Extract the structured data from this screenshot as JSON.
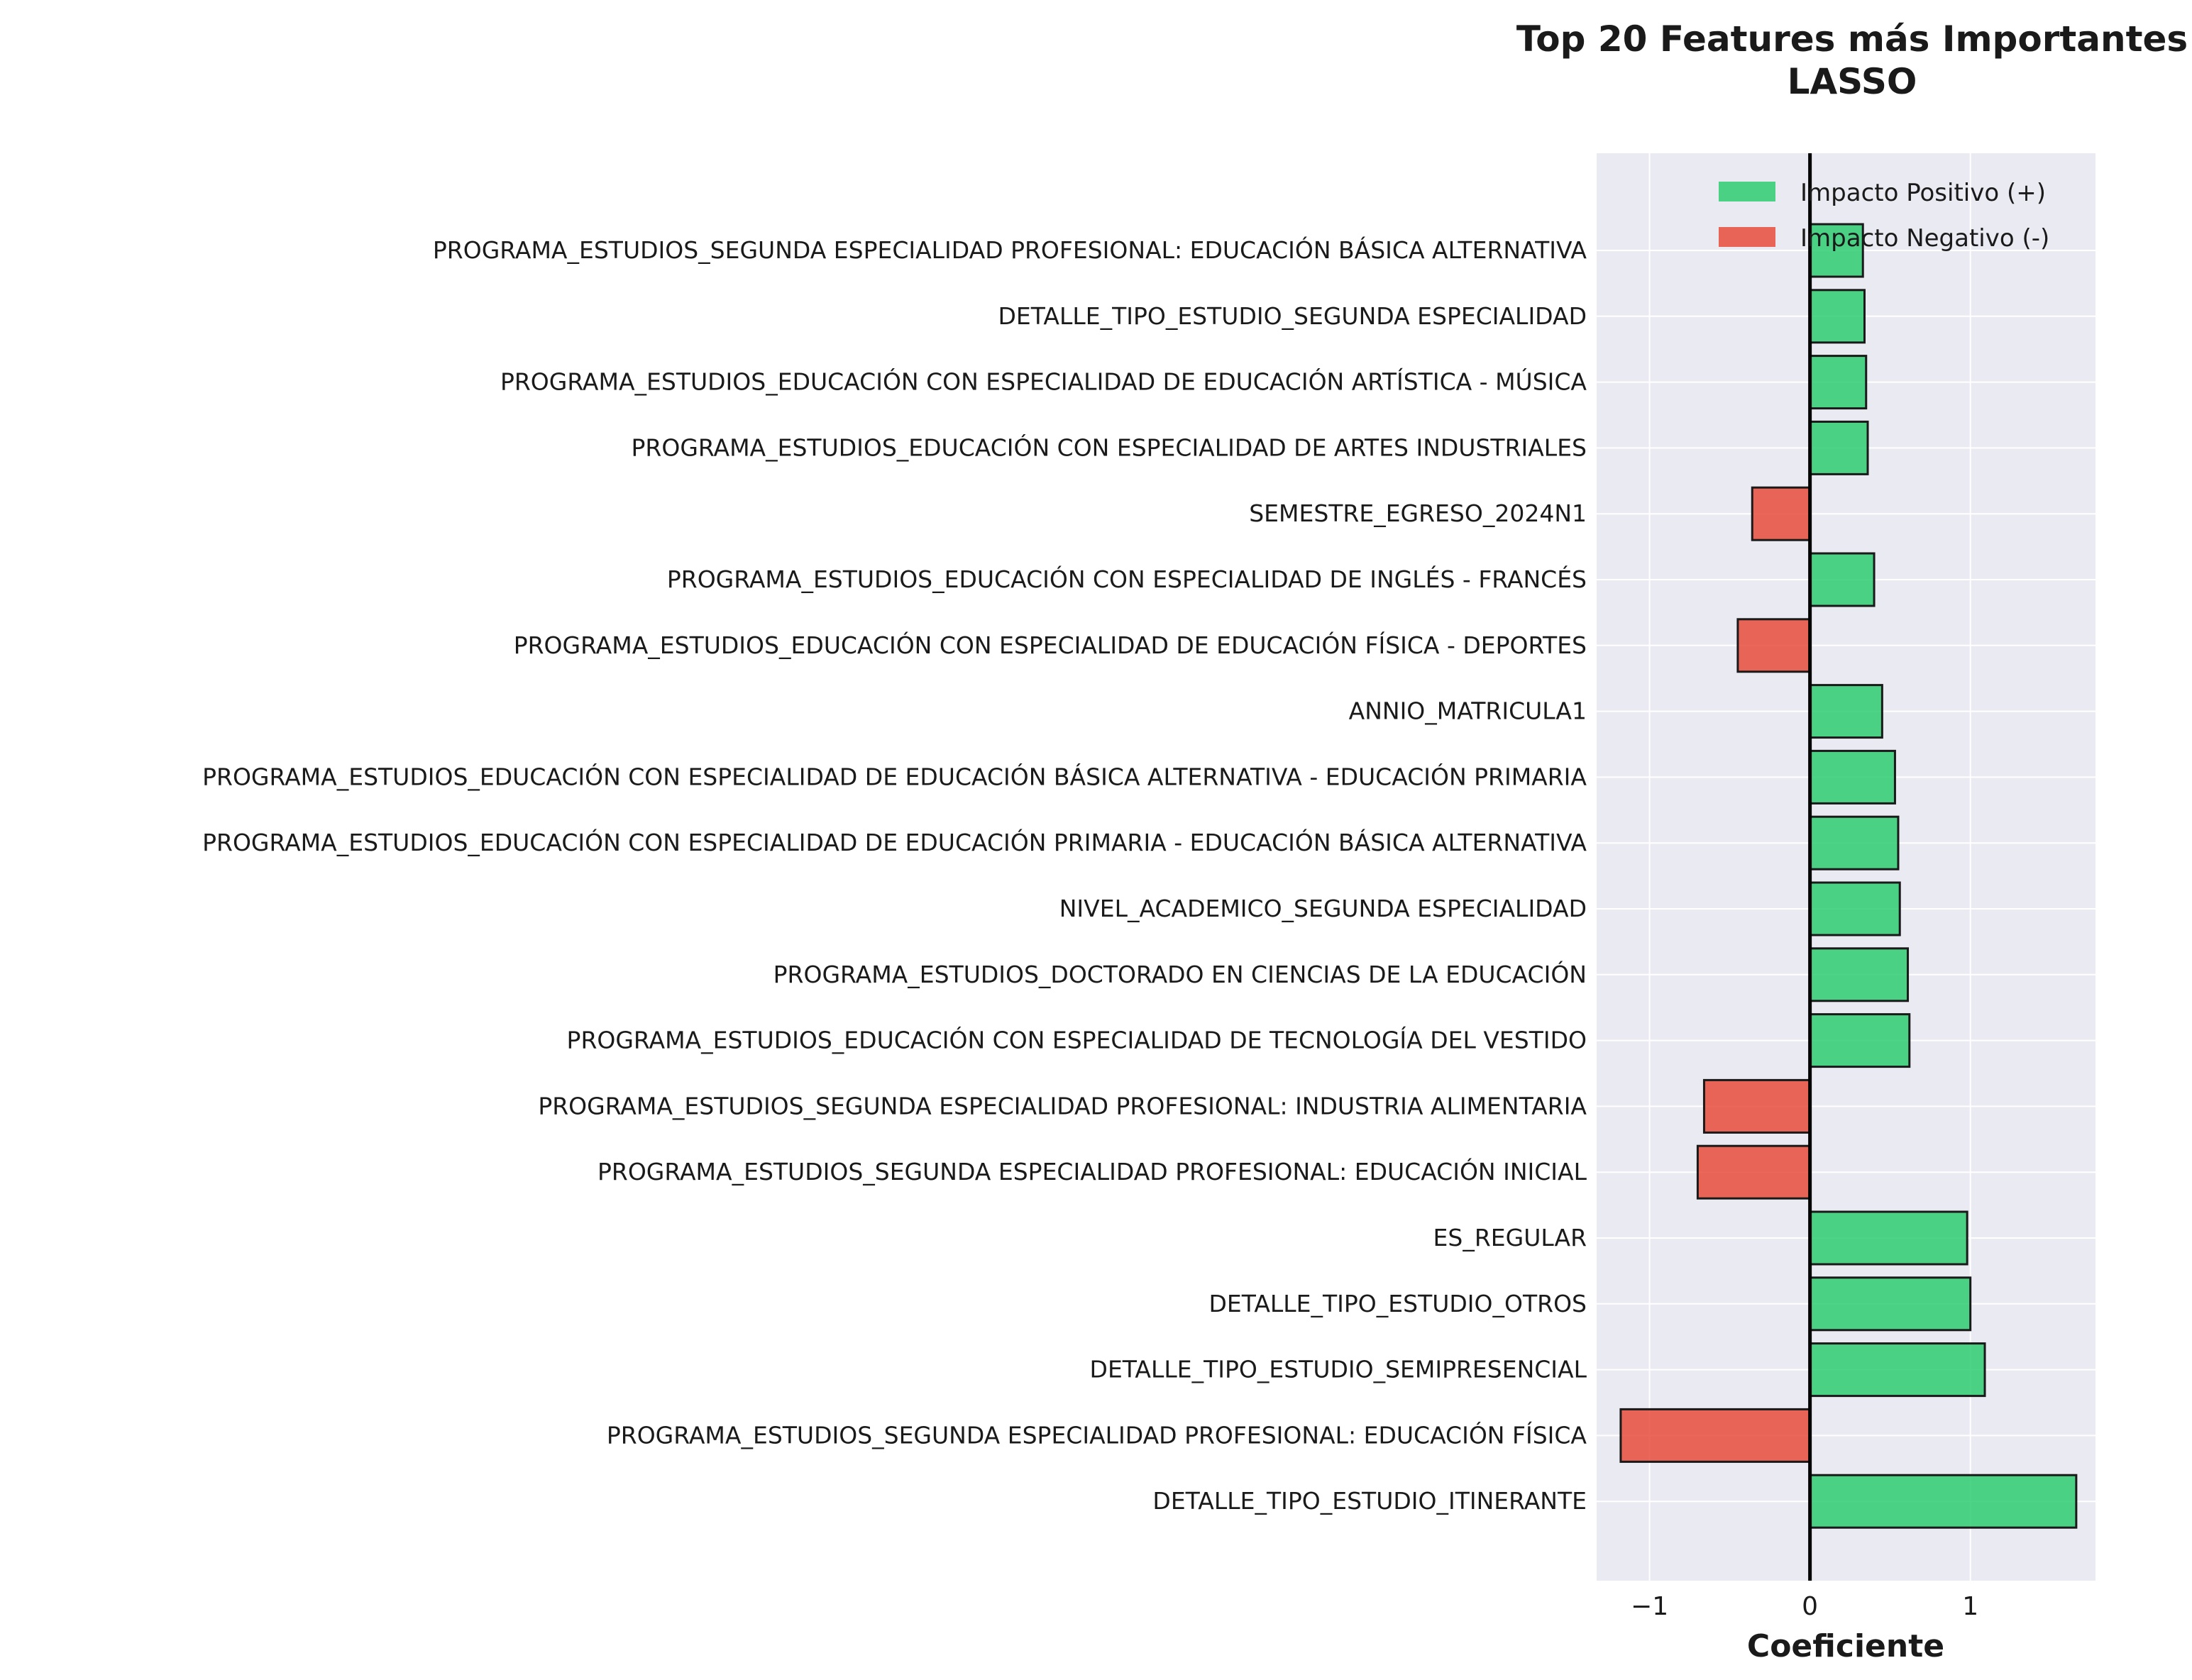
{
  "chart_data": {
    "type": "bar",
    "orientation": "horizontal",
    "title": "Top 20 Features más Importantes",
    "subtitle": "LASSO",
    "xlabel": "Coeficiente",
    "ylabel": "",
    "xlim": [
      -1.33,
      1.78
    ],
    "xticks": [
      -1,
      0,
      1
    ],
    "xtick_labels": [
      "−1",
      "0",
      "1"
    ],
    "grid": true,
    "legend": {
      "placement": "top-right",
      "entries": [
        {
          "label": "Impacto Positivo (+)",
          "color": "#2ecc71"
        },
        {
          "label": "Impacto Negativo (-)",
          "color": "#e74c3c"
        }
      ]
    },
    "colors": {
      "positive": "#2ecc71",
      "negative": "#e74c3c",
      "background": "#eaeaf2",
      "grid": "#ffffff",
      "edge": "#1a1a1a"
    },
    "categories": [
      "PROGRAMA_ESTUDIOS_SEGUNDA ESPECIALIDAD PROFESIONAL: EDUCACIÓN BÁSICA ALTERNATIVA",
      "DETALLE_TIPO_ESTUDIO_SEGUNDA ESPECIALIDAD",
      "PROGRAMA_ESTUDIOS_EDUCACIÓN CON ESPECIALIDAD DE EDUCACIÓN ARTÍSTICA - MÚSICA",
      "PROGRAMA_ESTUDIOS_EDUCACIÓN CON ESPECIALIDAD DE ARTES INDUSTRIALES",
      "SEMESTRE_EGRESO_2024N1",
      "PROGRAMA_ESTUDIOS_EDUCACIÓN CON ESPECIALIDAD DE INGLÉS - FRANCÉS",
      "PROGRAMA_ESTUDIOS_EDUCACIÓN CON ESPECIALIDAD DE EDUCACIÓN FÍSICA - DEPORTES",
      "ANNIO_MATRICULA1",
      "PROGRAMA_ESTUDIOS_EDUCACIÓN CON ESPECIALIDAD DE EDUCACIÓN BÁSICA ALTERNATIVA - EDUCACIÓN PRIMARIA",
      "PROGRAMA_ESTUDIOS_EDUCACIÓN CON ESPECIALIDAD DE EDUCACIÓN PRIMARIA - EDUCACIÓN BÁSICA ALTERNATIVA",
      "NIVEL_ACADEMICO_SEGUNDA ESPECIALIDAD",
      "PROGRAMA_ESTUDIOS_DOCTORADO EN CIENCIAS DE LA EDUCACIÓN",
      "PROGRAMA_ESTUDIOS_EDUCACIÓN CON ESPECIALIDAD DE TECNOLOGÍA DEL VESTIDO",
      "PROGRAMA_ESTUDIOS_SEGUNDA ESPECIALIDAD PROFESIONAL: INDUSTRIA ALIMENTARIA",
      "PROGRAMA_ESTUDIOS_SEGUNDA ESPECIALIDAD PROFESIONAL: EDUCACIÓN INICIAL",
      "ES_REGULAR",
      "DETALLE_TIPO_ESTUDIO_OTROS",
      "DETALLE_TIPO_ESTUDIO_SEMIPRESENCIAL",
      "PROGRAMA_ESTUDIOS_SEGUNDA ESPECIALIDAD PROFESIONAL: EDUCACIÓN FÍSICA",
      "DETALLE_TIPO_ESTUDIO_ITINERANTE"
    ],
    "values": [
      0.33,
      0.34,
      0.35,
      0.36,
      -0.36,
      0.4,
      -0.45,
      0.45,
      0.53,
      0.55,
      0.56,
      0.61,
      0.62,
      -0.66,
      -0.7,
      0.98,
      1.0,
      1.09,
      -1.18,
      1.66
    ]
  }
}
